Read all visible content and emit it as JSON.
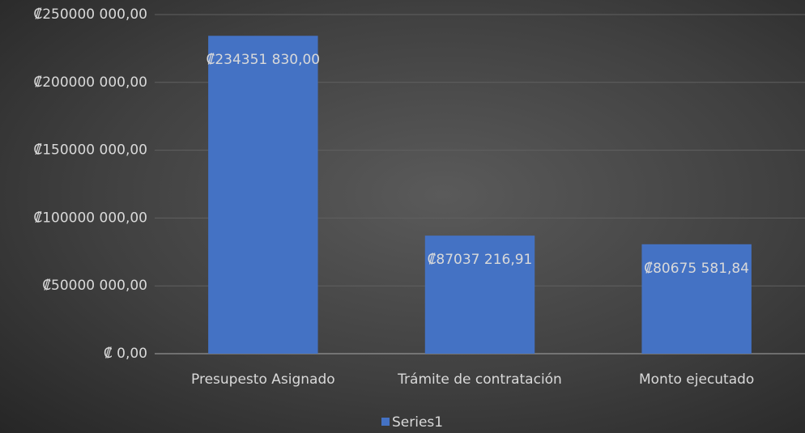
{
  "chart_data": {
    "type": "bar",
    "categories": [
      "Presupesto Asignado",
      "Trámite de contratación",
      "Monto ejecutado"
    ],
    "series": [
      {
        "name": "Series1",
        "color": "#4472c4",
        "values": [
          234351830,
          87037216.91,
          80675581.84
        ],
        "value_labels": [
          "₡234351 830,00",
          "₡87037 216,91",
          "₡80675 581,84"
        ]
      }
    ],
    "ylim": [
      0,
      250000000
    ],
    "yticks": [
      {
        "value": 0,
        "label": "₡ 0,00"
      },
      {
        "value": 50000000,
        "label": "₡50000 000,00"
      },
      {
        "value": 100000000,
        "label": "₡100000 000,00"
      },
      {
        "value": 150000000,
        "label": "₡150000 000,00"
      },
      {
        "value": 200000000,
        "label": "₡200000 000,00"
      },
      {
        "value": 250000000,
        "label": "₡250000 000,00"
      }
    ],
    "grid": true,
    "legend": "bottom"
  }
}
